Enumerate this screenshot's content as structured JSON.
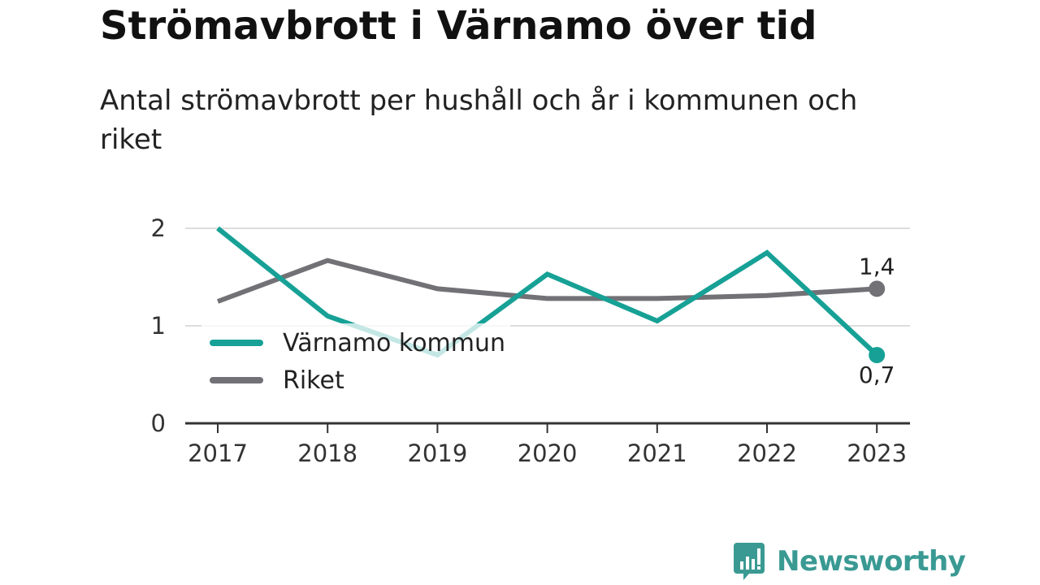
{
  "header": {
    "title": "Strömavbrott i Värnamo över tid",
    "subtitle": "Antal strömavbrott per hushåll och år i kommunen och riket"
  },
  "brand": {
    "name": "Newsworthy",
    "icon": "newsworthy-chart-bubble-icon",
    "color": "#3a9a93"
  },
  "chart_data": {
    "type": "line",
    "title": "Strömavbrott i Värnamo över tid",
    "subtitle": "Antal strömavbrott per hushåll och år i kommunen och riket",
    "categories": [
      "2017",
      "2018",
      "2019",
      "2020",
      "2021",
      "2022",
      "2023"
    ],
    "ylim": [
      0,
      2
    ],
    "yticks": [
      "0",
      "1",
      "2"
    ],
    "grid": true,
    "legend_position": "bottom-left",
    "series": [
      {
        "name": "Värnamo kommun",
        "color": "#17a196",
        "values": [
          2.0,
          1.1,
          0.7,
          1.53,
          1.05,
          1.75,
          0.7
        ],
        "end_label": "0,7"
      },
      {
        "name": "Riket",
        "color": "#727176",
        "values": [
          1.25,
          1.67,
          1.38,
          1.28,
          1.28,
          1.31,
          1.38
        ],
        "end_label": "1,4"
      }
    ]
  }
}
